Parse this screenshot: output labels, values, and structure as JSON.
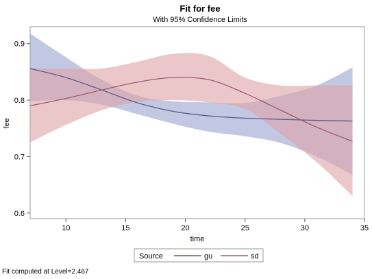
{
  "chart_data": {
    "type": "line",
    "title": "Fit for fee",
    "subtitle": "With 95% Confidence Limits",
    "xlabel": "time",
    "ylabel": "fee",
    "xlim": [
      7,
      35
    ],
    "ylim": [
      0.59,
      0.93
    ],
    "xticks": [
      10,
      15,
      20,
      25,
      30,
      35
    ],
    "yticks": [
      0.6,
      0.7,
      0.8,
      0.9
    ],
    "x": [
      7,
      10,
      13,
      16,
      19,
      22,
      25,
      28,
      31,
      34
    ],
    "series": [
      {
        "name": "gu",
        "color": "#5A5A8C",
        "band_color": "#99A3CE",
        "values": [
          0.856,
          0.84,
          0.818,
          0.795,
          0.78,
          0.772,
          0.768,
          0.766,
          0.764,
          0.763
        ],
        "upper": [
          0.918,
          0.876,
          0.836,
          0.808,
          0.798,
          0.796,
          0.795,
          0.808,
          0.826,
          0.858
        ],
        "lower": [
          0.798,
          0.8,
          0.792,
          0.775,
          0.758,
          0.744,
          0.736,
          0.724,
          0.7,
          0.668
        ]
      },
      {
        "name": "sd",
        "color": "#9A5A6E",
        "band_color": "#E0A2A6",
        "values": [
          0.79,
          0.803,
          0.818,
          0.832,
          0.84,
          0.836,
          0.812,
          0.782,
          0.752,
          0.727
        ],
        "upper": [
          0.856,
          0.856,
          0.856,
          0.868,
          0.882,
          0.878,
          0.84,
          0.826,
          0.826,
          0.826
        ],
        "lower": [
          0.725,
          0.756,
          0.782,
          0.797,
          0.8,
          0.796,
          0.784,
          0.74,
          0.69,
          0.63
        ]
      }
    ],
    "legend": {
      "title": "Source",
      "position": "bottom-center",
      "border": true
    },
    "grid": false
  },
  "footnote": "Fit computed at Level=2.467"
}
